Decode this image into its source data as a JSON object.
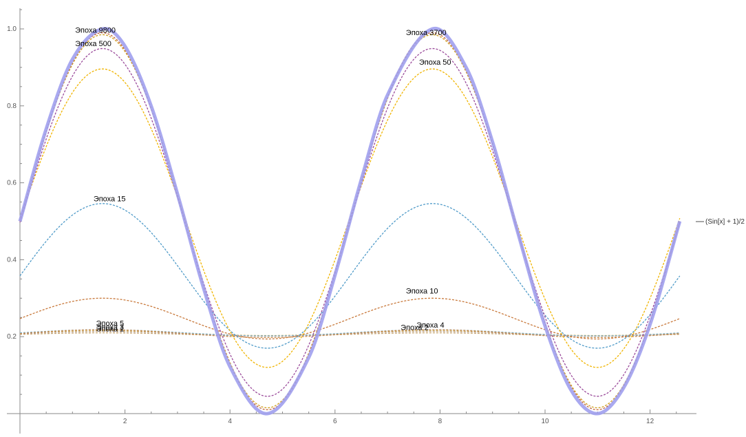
{
  "chart_data": {
    "type": "line",
    "title": "",
    "xlabel": "",
    "ylabel": "",
    "xlim": [
      0,
      12.566
    ],
    "ylim": [
      0,
      1.05
    ],
    "grid": false,
    "legend_position": "right",
    "x_ticks": [
      {
        "value": 2,
        "label": "2"
      },
      {
        "value": 4,
        "label": "4"
      },
      {
        "value": 6,
        "label": "6"
      },
      {
        "value": 8,
        "label": "8"
      },
      {
        "value": 10,
        "label": "10"
      },
      {
        "value": 12,
        "label": "12"
      }
    ],
    "y_ticks": [
      {
        "value": 0.2,
        "label": "0.2"
      },
      {
        "value": 0.4,
        "label": "0.4"
      },
      {
        "value": 0.6,
        "label": "0.6"
      },
      {
        "value": 0.8,
        "label": "0.8"
      },
      {
        "value": 1.0,
        "label": "1.0"
      }
    ],
    "target": {
      "name": "(Sin[x] + 1)/2",
      "color": "#a0a0ee",
      "x": [
        0,
        0.5,
        1,
        1.571,
        2,
        2.5,
        3,
        3.5,
        4,
        4.712,
        5.5,
        6,
        6.5,
        7,
        7.854,
        8.5,
        9,
        9.5,
        10,
        10.5,
        11,
        11.5,
        12,
        12.566
      ],
      "values": [
        0.5,
        0.74,
        0.921,
        1.0,
        0.955,
        0.799,
        0.571,
        0.325,
        0.122,
        0.0,
        0.146,
        0.36,
        0.608,
        0.828,
        1.0,
        0.899,
        0.706,
        0.462,
        0.228,
        0.06,
        0.0,
        0.068,
        0.232,
        0.5
      ]
    },
    "approximations": [
      {
        "epoch": "Эпоха 1",
        "color": "#c5a26a",
        "amplitude": 0.004,
        "center": 0.206
      },
      {
        "epoch": "Эпоха 2",
        "color": "#9f8fb0",
        "amplitude": 0.006,
        "center": 0.208
      },
      {
        "epoch": "Эпоха 3",
        "color": "#d8b255",
        "amplitude": 0.006,
        "center": 0.209
      },
      {
        "epoch": "Эпоха 4",
        "color": "#7fb2cc",
        "amplitude": 0.008,
        "center": 0.21
      },
      {
        "epoch": "Эпоха 5",
        "color": "#c98a4c",
        "amplitude": 0.01,
        "center": 0.208
      },
      {
        "epoch": "Эпоха 10",
        "color": "#c8783a",
        "amplitude": 0.053,
        "center": 0.247
      },
      {
        "epoch": "Эпоха 15",
        "color": "#4e9ac8",
        "amplitude": 0.188,
        "center": 0.358
      },
      {
        "epoch": "Эпоха 50",
        "color": "#f0b400",
        "amplitude": 0.388,
        "center": 0.508
      },
      {
        "epoch": "Эпоха 500",
        "color": "#9a4a9a",
        "amplitude": 0.452,
        "center": 0.497
      },
      {
        "epoch": "Эпоха 3700",
        "color": "#d0a020",
        "amplitude": 0.485,
        "center": 0.5
      },
      {
        "epoch": "Эпоха 9800",
        "color": "#c0603a",
        "amplitude": 0.49,
        "center": 0.5
      }
    ],
    "curve_labels": [
      {
        "text": "Эпоха 9800",
        "x": 1.05,
        "y": 0.99
      },
      {
        "text": "Эпоха 500",
        "x": 1.05,
        "y": 0.955
      },
      {
        "text": "Эпоха 3700",
        "x": 7.35,
        "y": 0.984
      },
      {
        "text": "Эпоха 50",
        "x": 7.6,
        "y": 0.907
      },
      {
        "text": "Эпоха 15",
        "x": 1.4,
        "y": 0.552
      },
      {
        "text": "Эпоха 10",
        "x": 7.35,
        "y": 0.312
      },
      {
        "text": "Эпоха 5",
        "x": 1.45,
        "y": 0.228
      },
      {
        "text": "Эпоха 3",
        "x": 1.45,
        "y": 0.218
      },
      {
        "text": "Эпоха 1",
        "x": 1.45,
        "y": 0.214
      },
      {
        "text": "Эпоха 4",
        "x": 7.55,
        "y": 0.224
      },
      {
        "text": "Эпоха 2",
        "x": 7.25,
        "y": 0.217
      }
    ]
  },
  "legend": {
    "label": "(Sin[x] + 1)/2"
  }
}
